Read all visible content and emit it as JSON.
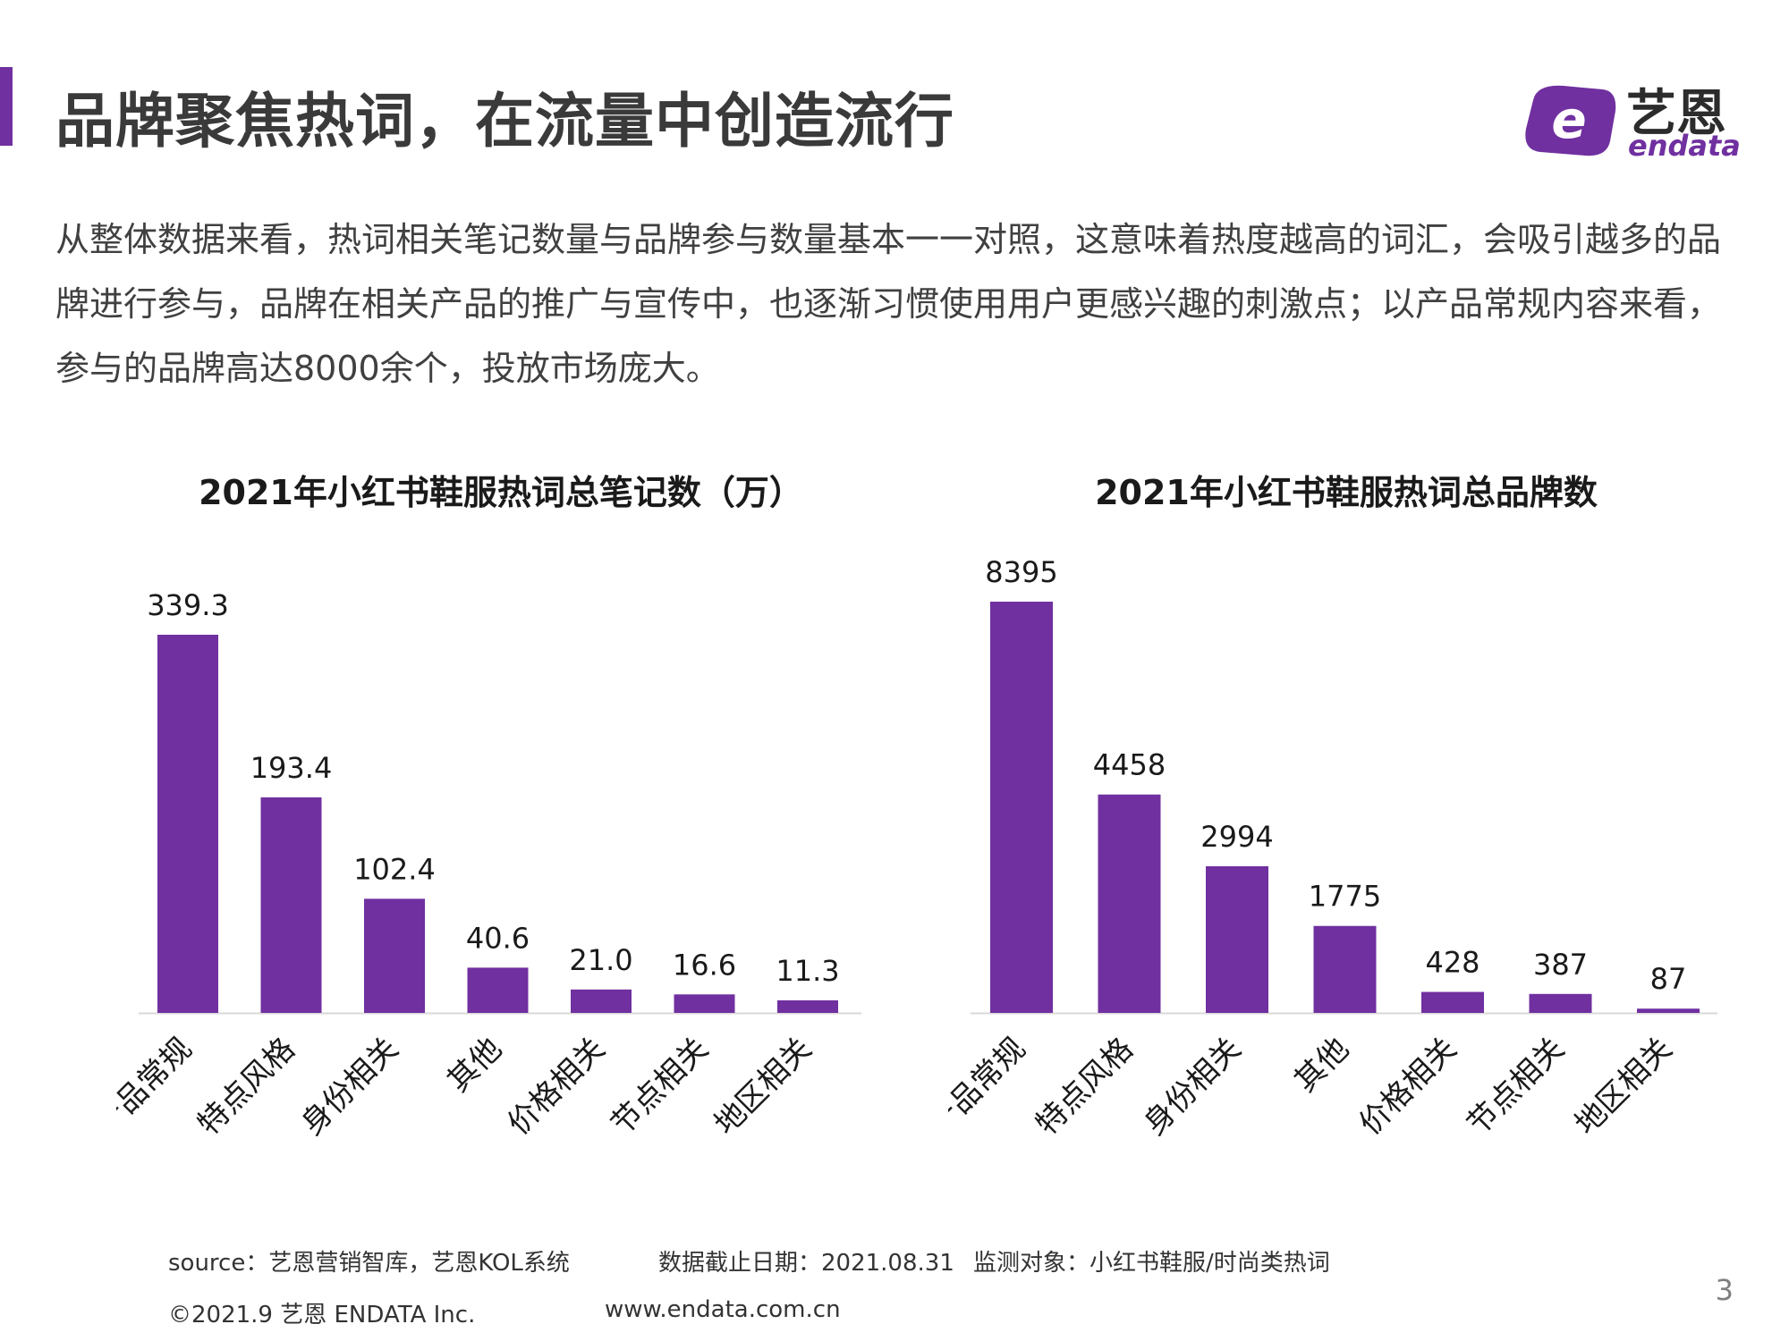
{
  "header": {
    "title": "品牌聚焦热词，在流量中创造流行",
    "logo_cn": "艺恩",
    "logo_en": "endata",
    "logo_letter": "e"
  },
  "intro": "从整体数据来看，热词相关笔记数量与品牌参与数量基本一一对照，这意味着热度越高的词汇，会吸引越多的品牌进行参与，品牌在相关产品的推广与宣传中，也逐渐习惯使用用户更感兴趣的刺激点；以产品常规内容来看，参与的品牌高达8000余个，投放市场庞大。",
  "chart_data": [
    {
      "type": "bar",
      "title": "2021年小红书鞋服热词总笔记数（万）",
      "categories": [
        "产品常规",
        "特点风格",
        "身份相关",
        "其他",
        "价格相关",
        "节点相关",
        "地区相关"
      ],
      "values": [
        339.3,
        193.4,
        102.4,
        40.6,
        21.0,
        16.6,
        11.3
      ],
      "value_labels": [
        "339.3",
        "193.4",
        "102.4",
        "40.6",
        "21.0",
        "16.6",
        "11.3"
      ],
      "ylim": [
        0,
        339.3
      ],
      "color": "#7030a0",
      "grid": false,
      "legend": "none"
    },
    {
      "type": "bar",
      "title": "2021年小红书鞋服热词总品牌数",
      "categories": [
        "产品常规",
        "特点风格",
        "身份相关",
        "其他",
        "价格相关",
        "节点相关",
        "地区相关"
      ],
      "values": [
        8395,
        4458,
        2994,
        1775,
        428,
        387,
        87
      ],
      "value_labels": [
        "8395",
        "4458",
        "2994",
        "1775",
        "428",
        "387",
        "87"
      ],
      "ylim": [
        0,
        8395
      ],
      "color": "#7030a0",
      "grid": false,
      "legend": "none"
    }
  ],
  "footer": {
    "source": "source：艺恩营销智库，艺恩KOL系统",
    "cutoff": "数据截止日期：2021.08.31",
    "monitor": "监测对象：小红书鞋服/时尚类热词",
    "copyright": "©2021.9 艺恩 ENDATA Inc.",
    "website": "www.endata.com.cn"
  },
  "page_number": "3",
  "colors": {
    "accent": "#7030a0",
    "axis": "#d9d9d9",
    "label": "#1a1a1a"
  }
}
